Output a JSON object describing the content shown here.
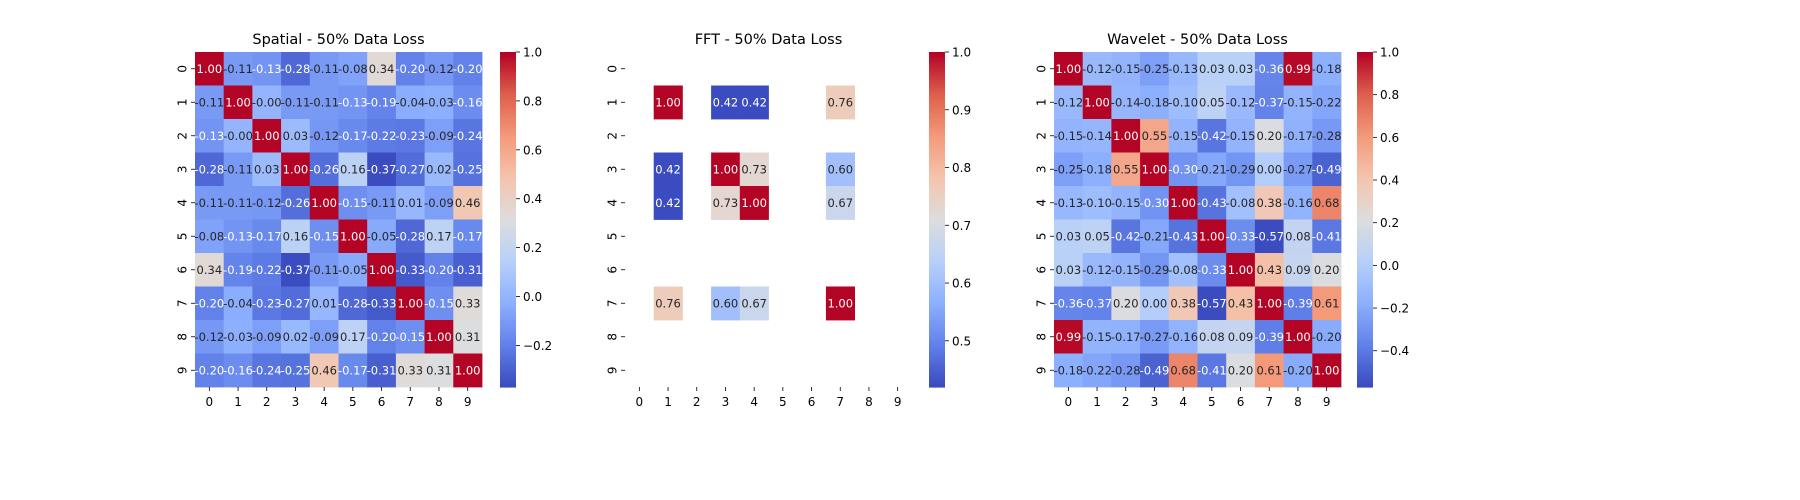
{
  "chart_data": [
    {
      "type": "heatmap",
      "title": "Spatial - 50% Data Loss",
      "x_categories": [
        "0",
        "1",
        "2",
        "3",
        "4",
        "5",
        "6",
        "7",
        "8",
        "9"
      ],
      "y_categories": [
        "0",
        "1",
        "2",
        "3",
        "4",
        "5",
        "6",
        "7",
        "8",
        "9"
      ],
      "values": [
        [
          1.0,
          -0.11,
          -0.13,
          -0.28,
          -0.11,
          -0.08,
          0.34,
          -0.2,
          -0.12,
          -0.2
        ],
        [
          -0.11,
          1.0,
          -0.0,
          -0.11,
          -0.11,
          -0.13,
          -0.19,
          -0.04,
          -0.03,
          -0.16
        ],
        [
          -0.13,
          -0.0,
          1.0,
          0.03,
          -0.12,
          -0.17,
          -0.22,
          -0.23,
          -0.09,
          -0.24
        ],
        [
          -0.28,
          -0.11,
          0.03,
          1.0,
          -0.26,
          0.16,
          -0.37,
          -0.27,
          0.02,
          -0.25
        ],
        [
          -0.11,
          -0.11,
          -0.12,
          -0.26,
          1.0,
          -0.15,
          -0.11,
          0.01,
          -0.09,
          0.46
        ],
        [
          -0.08,
          -0.13,
          -0.17,
          0.16,
          -0.15,
          1.0,
          -0.05,
          -0.28,
          0.17,
          -0.17
        ],
        [
          0.34,
          -0.19,
          -0.22,
          -0.37,
          -0.11,
          -0.05,
          1.0,
          -0.33,
          -0.2,
          -0.31
        ],
        [
          -0.2,
          -0.04,
          -0.23,
          -0.27,
          0.01,
          -0.28,
          -0.33,
          1.0,
          -0.15,
          0.33
        ],
        [
          -0.12,
          -0.03,
          -0.09,
          0.02,
          -0.09,
          0.17,
          -0.2,
          -0.15,
          1.0,
          0.31
        ],
        [
          -0.2,
          -0.16,
          -0.24,
          -0.25,
          0.46,
          -0.17,
          -0.31,
          0.33,
          0.31,
          1.0
        ]
      ],
      "colorscale": "coolwarm",
      "vmin": -0.37,
      "vmax": 1.0,
      "colorbar_ticks": [
        -0.2,
        0.0,
        0.2,
        0.4,
        0.6,
        0.8,
        1.0
      ],
      "colorbar_labels": [
        "−0.2",
        "0.0",
        "0.2",
        "0.4",
        "0.6",
        "0.8",
        "1.0"
      ]
    },
    {
      "type": "heatmap",
      "title": "FFT - 50% Data Loss",
      "x_categories": [
        "0",
        "1",
        "2",
        "3",
        "4",
        "5",
        "6",
        "7",
        "8",
        "9"
      ],
      "y_categories": [
        "0",
        "1",
        "2",
        "3",
        "4",
        "5",
        "6",
        "7",
        "8",
        "9"
      ],
      "values": [
        [
          null,
          null,
          null,
          null,
          null,
          null,
          null,
          null,
          null,
          null
        ],
        [
          null,
          1.0,
          null,
          0.42,
          0.42,
          null,
          null,
          0.76,
          null,
          null
        ],
        [
          null,
          null,
          null,
          null,
          null,
          null,
          null,
          null,
          null,
          null
        ],
        [
          null,
          0.42,
          null,
          1.0,
          0.73,
          null,
          null,
          0.6,
          null,
          null
        ],
        [
          null,
          0.42,
          null,
          0.73,
          1.0,
          null,
          null,
          0.67,
          null,
          null
        ],
        [
          null,
          null,
          null,
          null,
          null,
          null,
          null,
          null,
          null,
          null
        ],
        [
          null,
          null,
          null,
          null,
          null,
          null,
          null,
          null,
          null,
          null
        ],
        [
          null,
          0.76,
          null,
          0.6,
          0.67,
          null,
          null,
          1.0,
          null,
          null
        ],
        [
          null,
          null,
          null,
          null,
          null,
          null,
          null,
          null,
          null,
          null
        ],
        [
          null,
          null,
          null,
          null,
          null,
          null,
          null,
          null,
          null,
          null
        ]
      ],
      "colorscale": "coolwarm",
      "vmin": 0.42,
      "vmax": 1.0,
      "colorbar_ticks": [
        0.5,
        0.6,
        0.7,
        0.8,
        0.9,
        1.0
      ],
      "colorbar_labels": [
        "0.5",
        "0.6",
        "0.7",
        "0.8",
        "0.9",
        "1.0"
      ]
    },
    {
      "type": "heatmap",
      "title": "Wavelet - 50% Data Loss",
      "x_categories": [
        "0",
        "1",
        "2",
        "3",
        "4",
        "5",
        "6",
        "7",
        "8",
        "9"
      ],
      "y_categories": [
        "0",
        "1",
        "2",
        "3",
        "4",
        "5",
        "6",
        "7",
        "8",
        "9"
      ],
      "values": [
        [
          1.0,
          -0.12,
          -0.15,
          -0.25,
          -0.13,
          0.03,
          0.03,
          -0.36,
          0.99,
          -0.18
        ],
        [
          -0.12,
          1.0,
          -0.14,
          -0.18,
          -0.1,
          0.05,
          -0.12,
          -0.37,
          -0.15,
          -0.22
        ],
        [
          -0.15,
          -0.14,
          1.0,
          0.55,
          -0.15,
          -0.42,
          -0.15,
          0.2,
          -0.17,
          -0.28
        ],
        [
          -0.25,
          -0.18,
          0.55,
          1.0,
          -0.3,
          -0.21,
          -0.29,
          0.0,
          -0.27,
          -0.49
        ],
        [
          -0.13,
          -0.1,
          -0.15,
          -0.3,
          1.0,
          -0.43,
          -0.08,
          0.38,
          -0.16,
          0.68
        ],
        [
          0.03,
          0.05,
          -0.42,
          -0.21,
          -0.43,
          1.0,
          -0.33,
          -0.57,
          0.08,
          -0.41
        ],
        [
          0.03,
          -0.12,
          -0.15,
          -0.29,
          -0.08,
          -0.33,
          1.0,
          0.43,
          0.09,
          0.2
        ],
        [
          -0.36,
          -0.37,
          0.2,
          0.0,
          0.38,
          -0.57,
          0.43,
          1.0,
          -0.39,
          0.61
        ],
        [
          0.99,
          -0.15,
          -0.17,
          -0.27,
          -0.16,
          0.08,
          0.09,
          -0.39,
          1.0,
          -0.2
        ],
        [
          -0.18,
          -0.22,
          -0.28,
          -0.49,
          0.68,
          -0.41,
          0.2,
          0.61,
          -0.2,
          1.0
        ]
      ],
      "colorscale": "coolwarm",
      "vmin": -0.57,
      "vmax": 1.0,
      "colorbar_ticks": [
        -0.4,
        -0.2,
        0.0,
        0.2,
        0.4,
        0.6,
        0.8,
        1.0
      ],
      "colorbar_labels": [
        "−0.4",
        "−0.2",
        "0.0",
        "0.2",
        "0.4",
        "0.6",
        "0.8",
        "1.0"
      ]
    }
  ]
}
